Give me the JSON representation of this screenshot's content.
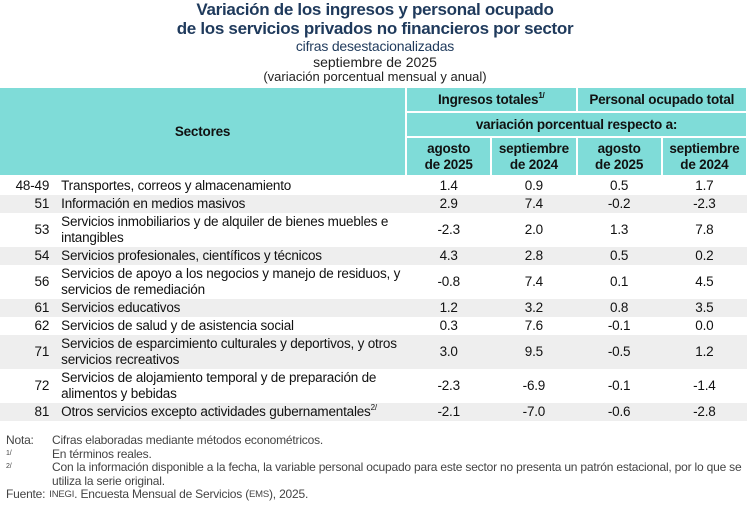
{
  "title": {
    "line1": "Variación de los ingresos y personal ocupado",
    "line2": "de los servicios privados no financieros por sector",
    "subtitle": "cifras desestacionalizadas",
    "period": "septiembre de 2025",
    "unit": "(variación porcentual mensual y anual)"
  },
  "header": {
    "sectores": "Sectores",
    "ingresos": "Ingresos totales",
    "ingresos_sup": "1/",
    "personal": "Personal ocupado total",
    "variacion": "variación porcentual respecto a:",
    "cols": [
      {
        "l1": "agosto",
        "l2": "de 2025"
      },
      {
        "l1": "septiembre",
        "l2": "de 2024"
      },
      {
        "l1": "agosto",
        "l2": "de 2025"
      },
      {
        "l1": "septiembre",
        "l2": "de 2024"
      }
    ]
  },
  "rows": [
    {
      "code": "48-49",
      "name": "Transportes, correos y almacenamiento",
      "sup": "",
      "v": [
        "1.4",
        "0.9",
        "0.5",
        "1.7"
      ]
    },
    {
      "code": "51",
      "name": "Información en medios masivos",
      "sup": "",
      "v": [
        "2.9",
        "7.4",
        "-0.2",
        "-2.3"
      ]
    },
    {
      "code": "53",
      "name": "Servicios inmobiliarios y de alquiler de bienes muebles e intangibles",
      "sup": "",
      "v": [
        "-2.3",
        "2.0",
        "1.3",
        "7.8"
      ]
    },
    {
      "code": "54",
      "name": "Servicios profesionales, científicos y técnicos",
      "sup": "",
      "v": [
        "4.3",
        "2.8",
        "0.5",
        "0.2"
      ]
    },
    {
      "code": "56",
      "name": "Servicios de apoyo a los negocios y manejo de residuos, y servicios de remediación",
      "sup": "",
      "v": [
        "-0.8",
        "7.4",
        "0.1",
        "4.5"
      ]
    },
    {
      "code": "61",
      "name": "Servicios educativos",
      "sup": "",
      "v": [
        "1.2",
        "3.2",
        "0.8",
        "3.5"
      ]
    },
    {
      "code": "62",
      "name": "Servicios de salud y de asistencia social",
      "sup": "",
      "v": [
        "0.3",
        "7.6",
        "-0.1",
        "0.0"
      ]
    },
    {
      "code": "71",
      "name": "Servicios de esparcimiento culturales y deportivos, y otros servicios recreativos",
      "sup": "",
      "v": [
        "3.0",
        "9.5",
        "-0.5",
        "1.2"
      ]
    },
    {
      "code": "72",
      "name": "Servicios de alojamiento temporal y de preparación de alimentos y bebidas",
      "sup": "",
      "v": [
        "-2.3",
        "-6.9",
        "-0.1",
        "-1.4"
      ]
    },
    {
      "code": "81",
      "name": "Otros servicios excepto actividades gubernamentales",
      "sup": "2/",
      "v": [
        "-2.1",
        "-7.0",
        "-0.6",
        "-2.8"
      ]
    }
  ],
  "notes": {
    "nota_label": "Nota:",
    "nota": "Cifras elaboradas mediante métodos econométricos.",
    "n1_label": "1/",
    "n1": "En términos reales.",
    "n2_label": "2/",
    "n2": "Con la información disponible a la fecha, la variable personal ocupado para este sector no presenta un patrón estacional, por lo que se utiliza la serie original.",
    "fuente_label": "Fuente:",
    "fuente_inegi": "INEGI",
    "fuente_mid": ". Encuesta Mensual de Servicios (",
    "fuente_ems": "EMS",
    "fuente_end": "), 2025."
  },
  "colors": {
    "header_bg": "#7fdcd8",
    "title": "#1f3a5c",
    "alt_row": "#eeeeee"
  }
}
